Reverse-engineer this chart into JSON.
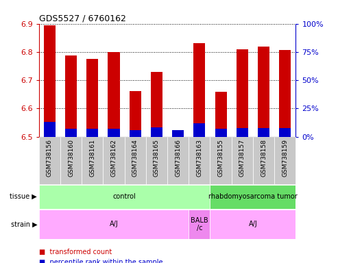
{
  "title": "GDS5527 / 6760162",
  "samples": [
    "GSM738156",
    "GSM738160",
    "GSM738161",
    "GSM738162",
    "GSM738164",
    "GSM738165",
    "GSM738166",
    "GSM738163",
    "GSM738155",
    "GSM738157",
    "GSM738158",
    "GSM738159"
  ],
  "red_values": [
    6.895,
    6.787,
    6.775,
    6.8,
    6.662,
    6.73,
    6.52,
    6.83,
    6.66,
    6.81,
    6.82,
    6.808
  ],
  "percentile_vals": [
    13,
    7,
    7,
    7,
    6,
    8,
    6,
    12,
    7,
    7.5,
    7.5,
    7.5
  ],
  "ylim_left": [
    6.5,
    6.9
  ],
  "ylim_right": [
    0,
    100
  ],
  "left_yticks": [
    6.5,
    6.6,
    6.7,
    6.8,
    6.9
  ],
  "right_yticks": [
    0,
    25,
    50,
    75,
    100
  ],
  "bar_base": 6.5,
  "tissue_labels": [
    {
      "label": "control",
      "start": 0,
      "end": 7,
      "color": "#aaffaa"
    },
    {
      "label": "rhabdomyosarcoma tumor",
      "start": 8,
      "end": 11,
      "color": "#66dd66"
    }
  ],
  "strain_labels": [
    {
      "label": "A/J",
      "start": 0,
      "end": 6,
      "color": "#ffaaff"
    },
    {
      "label": "BALB\n/c",
      "start": 7,
      "end": 7,
      "color": "#ee88ee"
    },
    {
      "label": "A/J",
      "start": 8,
      "end": 11,
      "color": "#ffaaff"
    }
  ],
  "legend_red": "transformed count",
  "legend_blue": "percentile rank within the sample",
  "red_color": "#cc0000",
  "blue_color": "#0000cc",
  "grid_color": "#000000",
  "left_axis_color": "#cc0000",
  "right_axis_color": "#0000cc",
  "xticklabel_bg": "#c8c8c8",
  "bar_width": 0.55
}
